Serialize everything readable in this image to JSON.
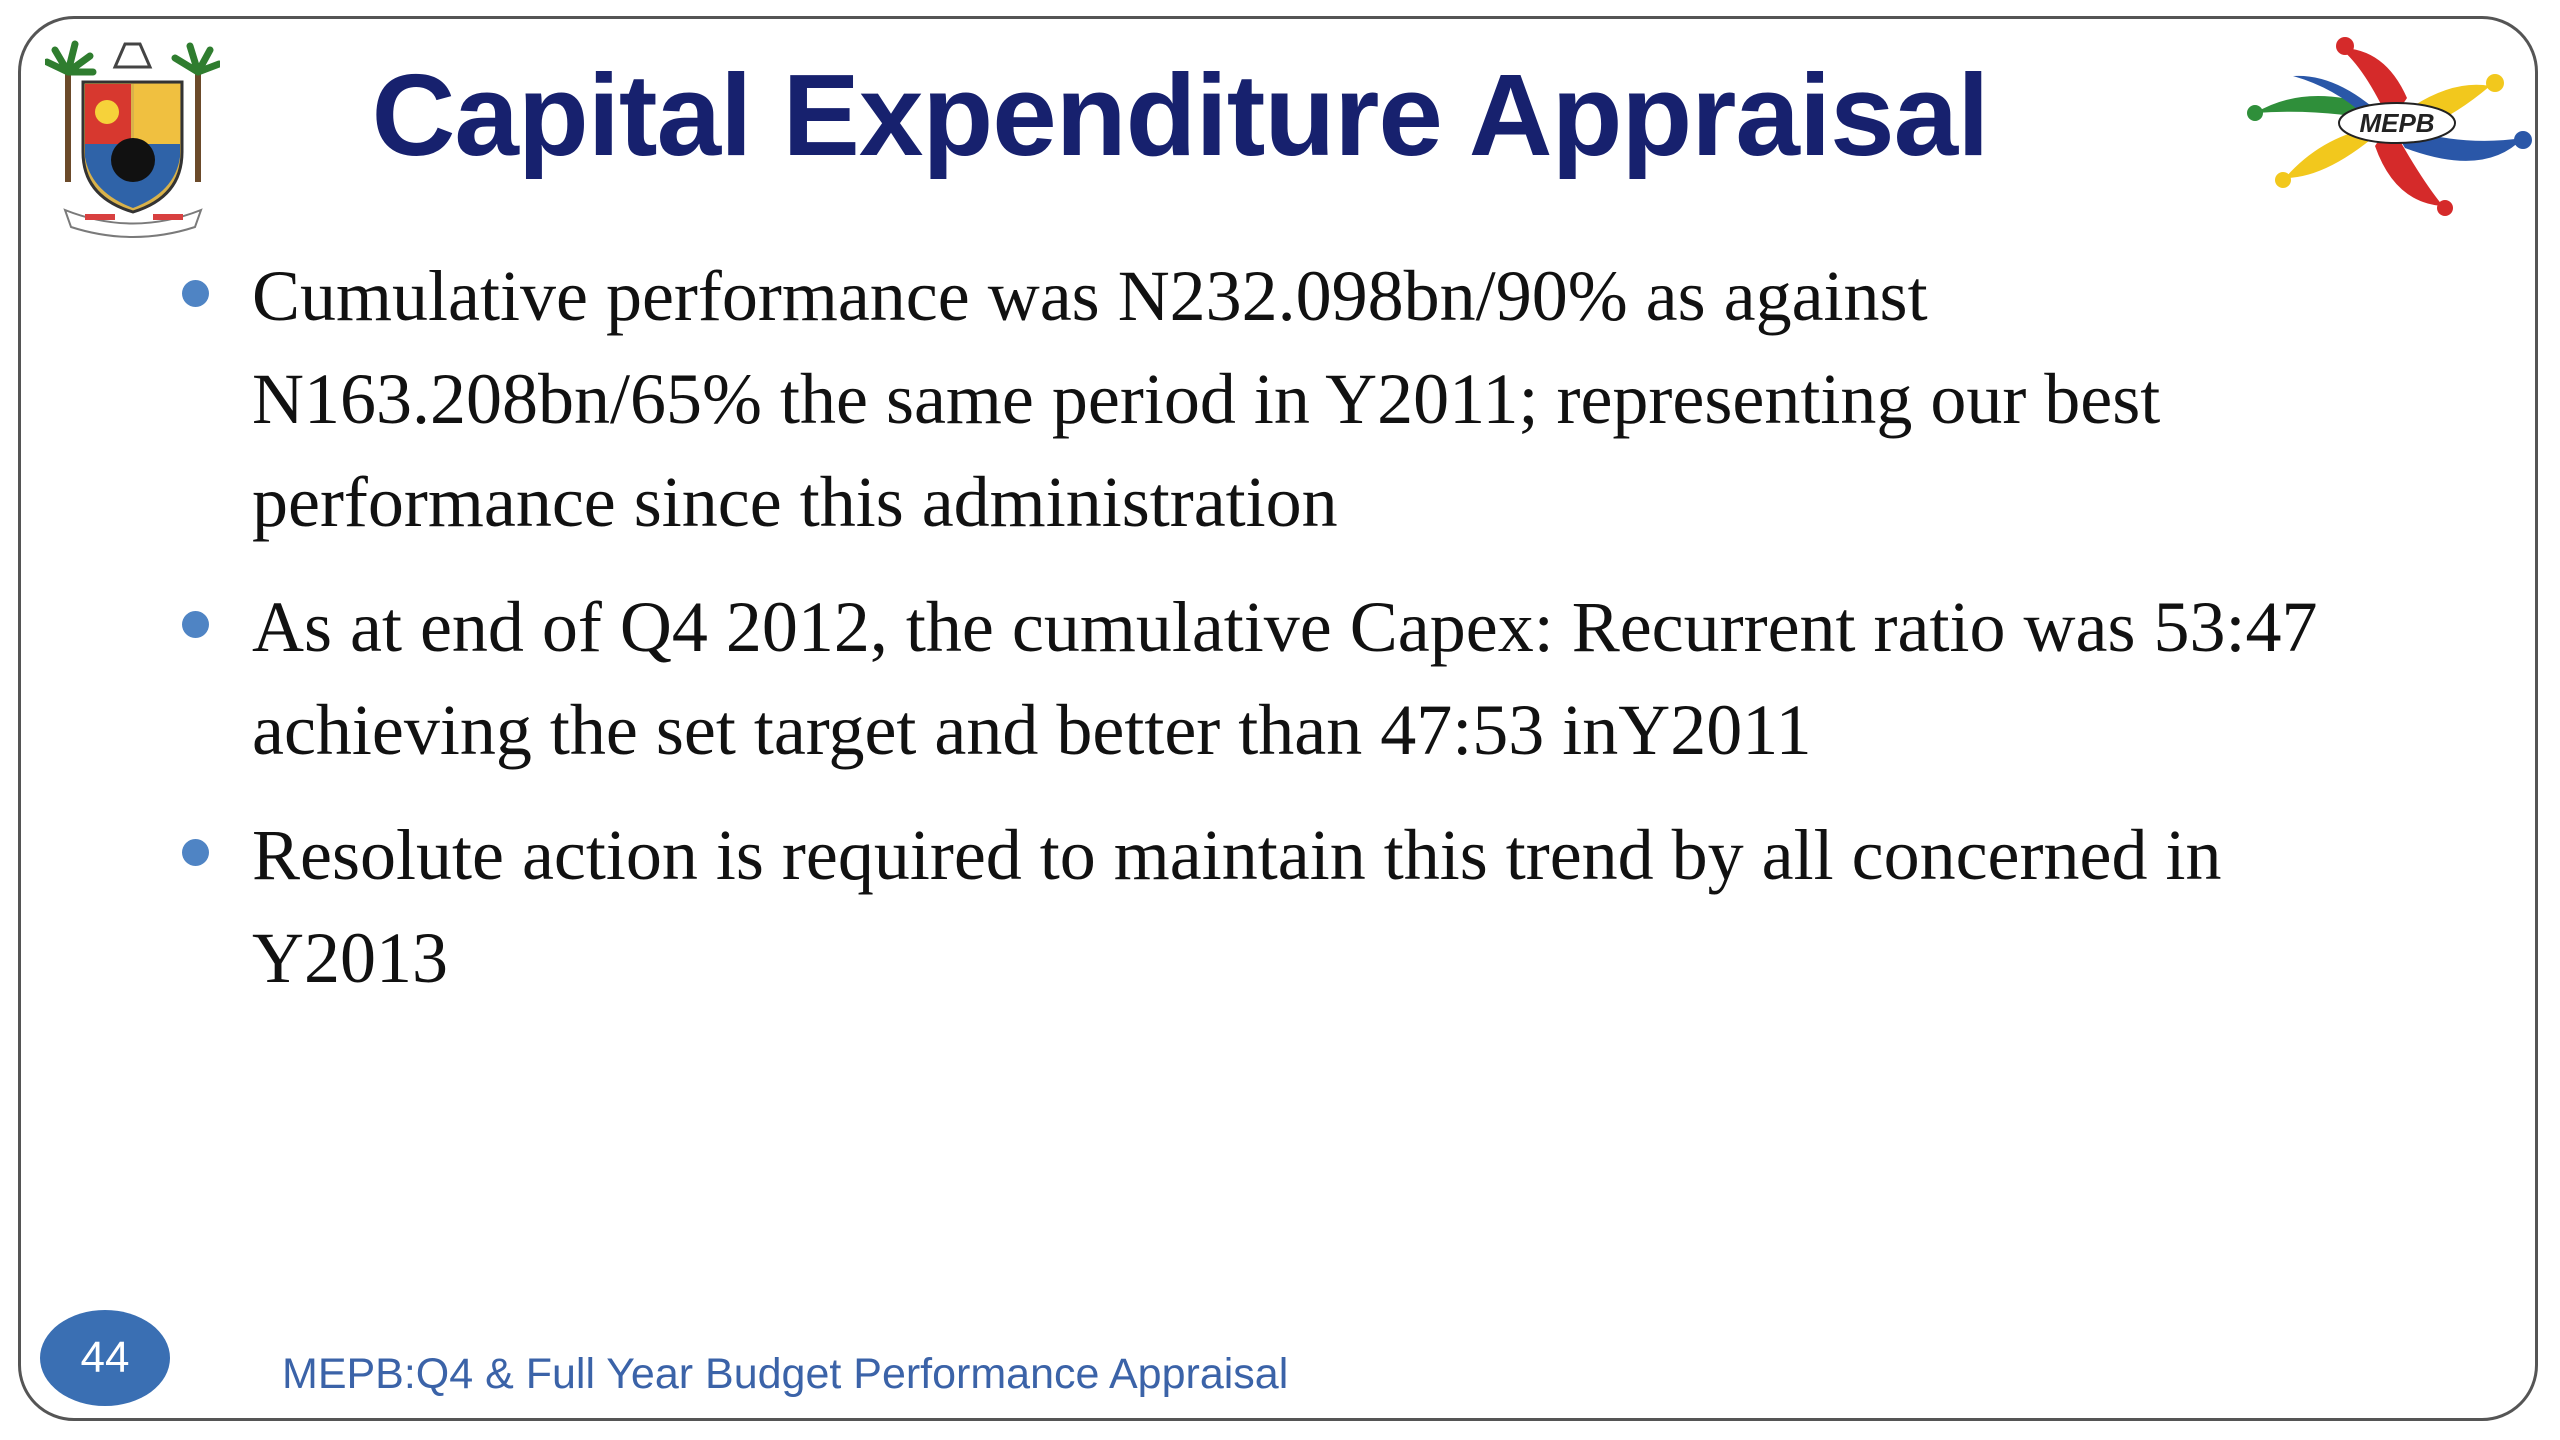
{
  "slide": {
    "title": "Capital Expenditure Appraisal",
    "bullets": [
      "Cumulative performance was N232.098bn/90% as against N163.208bn/65% the same period in Y2011; representing our best performance since this administration",
      "As at end of Q4 2012, the cumulative Capex: Recurrent ratio was 53:47  achieving the set target and better than 47:53 inY2011",
      "Resolute action is required to maintain this trend by all concerned in Y2013"
    ],
    "page_number": "44",
    "footer": "MEPB:Q4 & Full Year  Budget Performance Appraisal"
  },
  "logos": {
    "right_logo_text": "MEPB",
    "left_crest": "lagos-state-crest-icon",
    "right_logo": "mepb-logo-icon"
  },
  "colors": {
    "title": "#17216e",
    "bullet": "#4f84c4",
    "badge": "#3a6fb3",
    "footer": "#3b63a8"
  }
}
